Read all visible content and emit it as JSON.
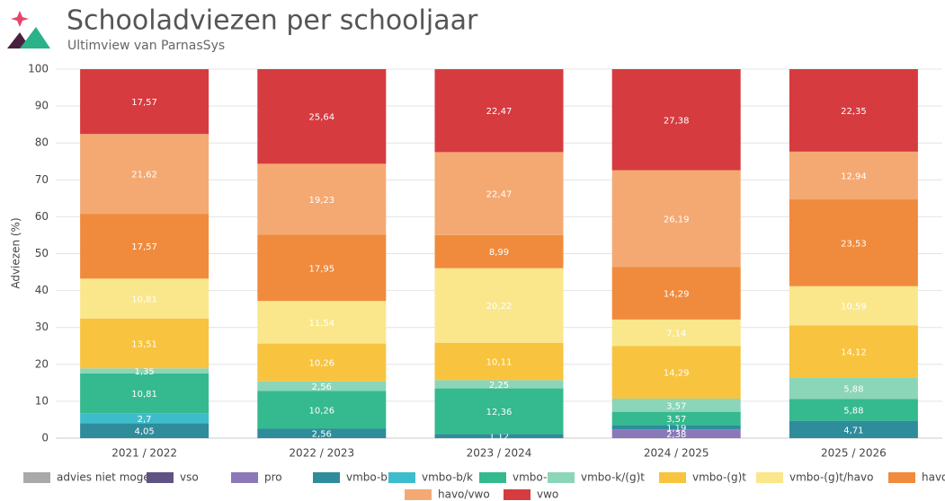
{
  "chart_data": {
    "type": "stacked_bar",
    "title": "Schooladviezen per schooljaar",
    "subtitle": "Ultimview van ParnasSys",
    "y_label": "Adviezen (%)",
    "categories": [
      "2021 / 2022",
      "2022 / 2023",
      "2023 / 2024",
      "2024 / 2025",
      "2025 / 2026"
    ],
    "ylim": [
      0,
      100
    ],
    "yticks": [
      0,
      10,
      20,
      30,
      40,
      50,
      60,
      70,
      80,
      90,
      100
    ],
    "grid": true,
    "legend": "bottom",
    "series": [
      {
        "name": "advies niet mogelijk",
        "color": "#a9a9a9",
        "values": [
          null,
          null,
          null,
          null,
          null
        ],
        "value_labels": [
          null,
          null,
          null,
          null,
          null
        ]
      },
      {
        "name": "vso",
        "color": "#5e5382",
        "values": [
          null,
          null,
          null,
          null,
          null
        ],
        "value_labels": [
          null,
          null,
          null,
          null,
          null
        ]
      },
      {
        "name": "pro",
        "color": "#8a78b8",
        "values": [
          null,
          null,
          null,
          2.38,
          null
        ],
        "value_labels": [
          null,
          null,
          null,
          "2,38",
          null
        ]
      },
      {
        "name": "vmbo-b",
        "color": "#2f8c9b",
        "values": [
          4.05,
          2.56,
          1.12,
          1.19,
          4.71
        ],
        "value_labels": [
          "4,05",
          "2,56",
          "1,12",
          "1,19",
          "4,71"
        ]
      },
      {
        "name": "vmbo-b/k",
        "color": "#3dbdcb",
        "values": [
          2.7,
          null,
          null,
          null,
          null
        ],
        "value_labels": [
          "2,7",
          null,
          null,
          null,
          null
        ]
      },
      {
        "name": "vmbo-k",
        "color": "#35b98e",
        "values": [
          10.81,
          10.26,
          12.36,
          3.57,
          5.88
        ],
        "value_labels": [
          "10,81",
          "10,26",
          "12,36",
          "3,57",
          "5,88"
        ]
      },
      {
        "name": "vmbo-k/(g)t",
        "color": "#8bd5b8",
        "values": [
          1.35,
          2.56,
          2.25,
          3.57,
          5.88
        ],
        "value_labels": [
          "1,35",
          "2,56",
          "2,25",
          "3,57",
          "5,88"
        ]
      },
      {
        "name": "vmbo-(g)t",
        "color": "#f8c33e",
        "values": [
          13.51,
          10.26,
          10.11,
          14.29,
          14.12
        ],
        "value_labels": [
          "13,51",
          "10,26",
          "10,11",
          "14,29",
          "14,12"
        ]
      },
      {
        "name": "vmbo-(g)t/havo",
        "color": "#fae78c",
        "values": [
          10.81,
          11.54,
          20.22,
          7.14,
          10.59
        ],
        "value_labels": [
          "10,81",
          "11,54",
          "20,22",
          "7,14",
          "10,59"
        ]
      },
      {
        "name": "havo",
        "color": "#f08b3d",
        "values": [
          17.57,
          17.95,
          8.99,
          14.29,
          23.53
        ],
        "value_labels": [
          "17,57",
          "17,95",
          "8,99",
          "14,29",
          "23,53"
        ]
      },
      {
        "name": "havo/vwo",
        "color": "#f4a972",
        "values": [
          21.62,
          19.23,
          22.47,
          26.19,
          12.94
        ],
        "value_labels": [
          "21,62",
          "19,23",
          "22,47",
          "26,19",
          "12,94"
        ]
      },
      {
        "name": "vwo",
        "color": "#d63b3f",
        "values": [
          17.57,
          25.64,
          22.47,
          27.38,
          22.35
        ],
        "value_labels": [
          "17,57",
          "25,64",
          "22,47",
          "27,38",
          "22,35"
        ]
      }
    ]
  }
}
